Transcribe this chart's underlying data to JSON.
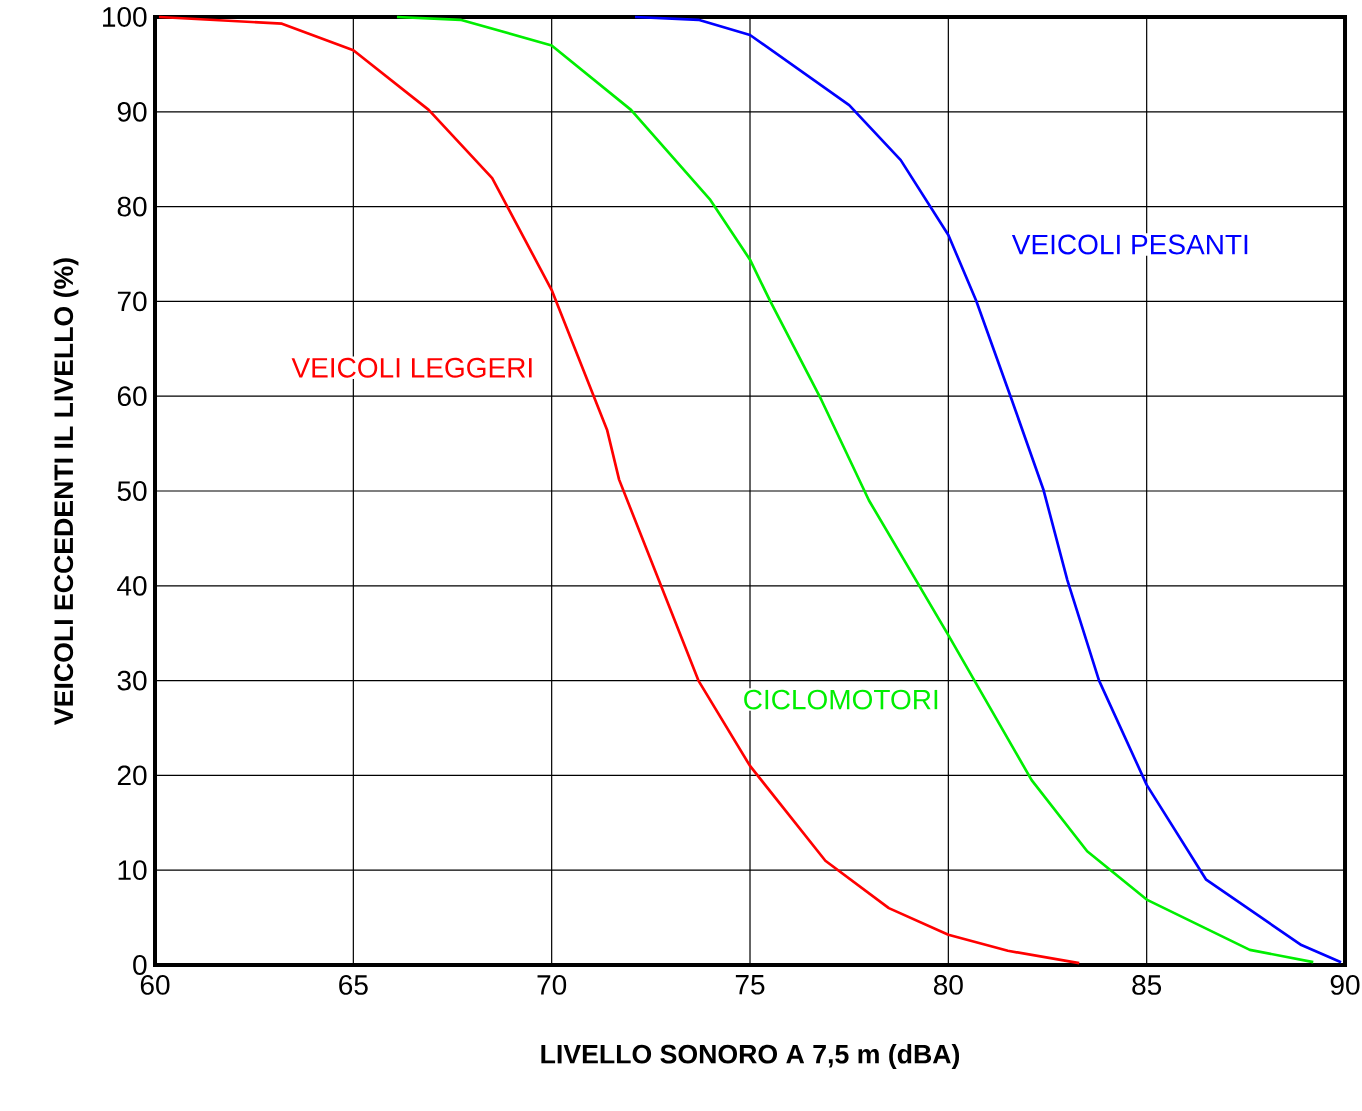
{
  "chart_data": {
    "type": "line",
    "xlabel": "LIVELLO SONORO A 7,5 m (dBA)",
    "ylabel": "VEICOLI ECCEDENTI IL LIVELLO (%)",
    "xlim": [
      60,
      90
    ],
    "ylim": [
      0,
      100
    ],
    "xticks": [
      60,
      65,
      70,
      75,
      80,
      85,
      90
    ],
    "yticks": [
      0,
      10,
      20,
      30,
      40,
      50,
      60,
      70,
      80,
      90,
      100
    ],
    "grid": true,
    "marker": "none",
    "line_style": "solid",
    "series": [
      {
        "name": "VEICOLI LEGGERI",
        "color": "#ff0000",
        "x": [
          60.1,
          63.2,
          65,
          66.9,
          68.5,
          70,
          71.4,
          71.7,
          72.7,
          73.7,
          75,
          76.9,
          78.5,
          80,
          81.5,
          83.3
        ],
        "values": [
          100,
          99.3,
          96.5,
          90.2,
          83,
          71.2,
          56.4,
          51.2,
          40.6,
          30,
          21,
          11,
          6,
          3.2,
          1.5,
          0.2
        ]
      },
      {
        "name": "CICLOMOTORI",
        "color": "#00ee00",
        "x": [
          66.1,
          67.7,
          70,
          72,
          74,
          75,
          75.5,
          76.8,
          78,
          80,
          82.1,
          83.5,
          85,
          87.6,
          89.2
        ],
        "values": [
          100,
          99.7,
          97,
          90.2,
          80.7,
          74.4,
          70.1,
          59.6,
          49,
          34.8,
          19.5,
          12,
          6.9,
          1.6,
          0.3
        ]
      },
      {
        "name": "VEICOLI PESANTI",
        "color": "#0000ff",
        "x": [
          72.1,
          73.7,
          75,
          77.5,
          78.8,
          80,
          80.7,
          81.6,
          82.4,
          83,
          83.8,
          85,
          86.5,
          88.9,
          89.9
        ],
        "values": [
          100,
          99.7,
          98.1,
          90.7,
          84.9,
          77,
          70.1,
          59.6,
          50.1,
          40.6,
          30,
          19,
          9,
          2.1,
          0.3
        ]
      }
    ]
  }
}
